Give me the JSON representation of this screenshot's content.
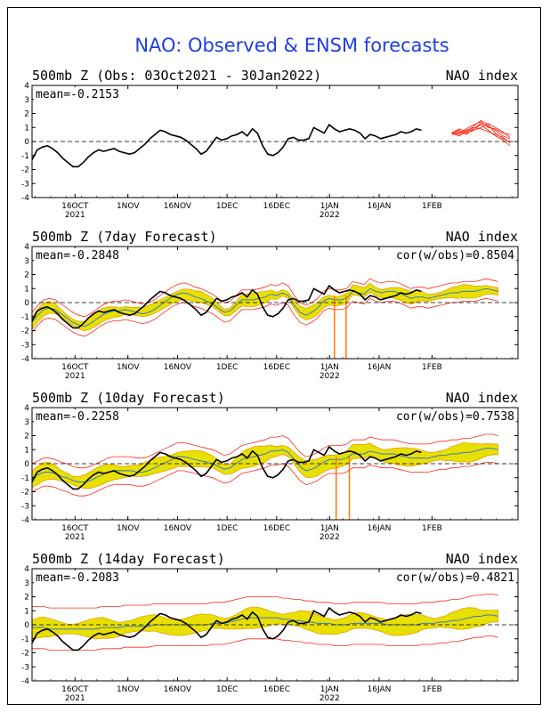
{
  "title": "NAO: Observed & ENSM forecasts",
  "colors": {
    "title": "#1f3fe0",
    "observed": "#000000",
    "forecast_members": "#ff2a1a",
    "ens_mean": "#3a78c8",
    "spread_fill": "#e8e000",
    "spread_edge": "#e8a000",
    "bounds": "#ff2a1a",
    "spike": "#ff7a00"
  },
  "chart_data": [
    {
      "type": "line",
      "title": "500mb Z (Obs: 03Oct2021 - 30Jan2022)",
      "right_label": "NAO index",
      "stat_left": "mean=-0.2153",
      "stat_right": "",
      "ylim": [
        -4,
        4
      ],
      "yticks": [
        -4,
        -3,
        -2,
        -1,
        0,
        1,
        2,
        3,
        4
      ],
      "x_tick_labels": [
        [
          "16OCT",
          "2021"
        ],
        [
          "1NOV",
          ""
        ],
        [
          "16NOV",
          ""
        ],
        [
          "1DEC",
          ""
        ],
        [
          "16DEC",
          ""
        ],
        [
          "1JAN",
          "2022"
        ],
        [
          "16JAN",
          ""
        ],
        [
          "1FEB",
          ""
        ]
      ],
      "x_tick_days": [
        13,
        29,
        44,
        59,
        74,
        90,
        105,
        121
      ],
      "xlim_days": [
        0,
        147
      ],
      "observed": [
        -1.3,
        -0.6,
        -0.4,
        -0.3,
        -0.5,
        -0.8,
        -1.2,
        -1.5,
        -1.8,
        -1.8,
        -1.5,
        -1.1,
        -0.8,
        -0.6,
        -0.7,
        -0.6,
        -0.5,
        -0.7,
        -0.8,
        -0.9,
        -0.8,
        -0.5,
        -0.2,
        0.2,
        0.5,
        0.8,
        0.7,
        0.5,
        0.4,
        0.3,
        0.1,
        -0.2,
        -0.5,
        -0.9,
        -0.7,
        -0.2,
        0.3,
        0.1,
        0.2,
        0.4,
        0.5,
        0.7,
        0.4,
        0.9,
        0.6,
        -0.3,
        -0.9,
        -1.0,
        -0.8,
        -0.4,
        0.2,
        0.3,
        0.1,
        0.1,
        0.2,
        1.0,
        0.8,
        0.6,
        1.2,
        0.9,
        0.7,
        0.8,
        0.9,
        0.8,
        0.6,
        0.2,
        0.5,
        0.4,
        0.2,
        0.3,
        0.4,
        0.5,
        0.7,
        0.6,
        0.7,
        0.9,
        0.8
      ],
      "obs_step_days": 1.55,
      "members_start_day": 127,
      "members": [
        [
          0.6,
          0.8,
          0.5,
          0.9,
          1.3,
          1.1,
          0.8,
          0.4,
          0.2
        ],
        [
          0.5,
          0.6,
          0.9,
          1.2,
          1.4,
          1.0,
          0.9,
          0.6,
          0.5
        ],
        [
          0.7,
          0.5,
          0.8,
          1.0,
          0.9,
          0.7,
          0.5,
          0.3,
          -0.1
        ],
        [
          0.6,
          0.9,
          0.7,
          1.1,
          1.5,
          1.2,
          0.6,
          0.2,
          0.0
        ],
        [
          0.5,
          0.7,
          0.6,
          0.8,
          1.0,
          1.3,
          1.0,
          0.7,
          0.3
        ],
        [
          0.6,
          0.4,
          0.7,
          0.9,
          1.2,
          0.8,
          0.4,
          0.1,
          -0.3
        ]
      ],
      "members_step_days": 2.2
    },
    {
      "type": "area",
      "title": "500mb Z (7day Forecast)",
      "right_label": "NAO index",
      "stat_left": "mean=-0.2848",
      "stat_right": "cor(w/obs)=0.8504",
      "ylim": [
        -4,
        4
      ],
      "yticks": [
        -4,
        -3,
        -2,
        -1,
        0,
        1,
        2,
        3,
        4
      ],
      "x_tick_labels": [
        [
          "16OCT",
          "2021"
        ],
        [
          "1NOV",
          ""
        ],
        [
          "16NOV",
          ""
        ],
        [
          "1DEC",
          ""
        ],
        [
          "16DEC",
          ""
        ],
        [
          "1JAN",
          "2022"
        ],
        [
          "16JAN",
          ""
        ],
        [
          "1FEB",
          ""
        ]
      ],
      "x_tick_days": [
        13,
        29,
        44,
        59,
        74,
        90,
        105,
        121
      ],
      "xlim_days": [
        0,
        147
      ],
      "ens_mean": [
        -1.4,
        -0.9,
        -0.5,
        -0.4,
        -0.5,
        -0.8,
        -1.1,
        -1.4,
        -1.6,
        -1.7,
        -1.5,
        -1.2,
        -0.9,
        -0.7,
        -0.6,
        -0.6,
        -0.5,
        -0.6,
        -0.7,
        -0.8,
        -0.7,
        -0.5,
        -0.2,
        0.1,
        0.4,
        0.6,
        0.7,
        0.6,
        0.4,
        0.3,
        0.1,
        -0.1,
        -0.4,
        -0.7,
        -0.6,
        -0.2,
        0.2,
        0.2,
        0.2,
        0.3,
        0.4,
        0.6,
        0.5,
        0.7,
        0.5,
        -0.2,
        -0.7,
        -0.9,
        -0.7,
        -0.4,
        0.1,
        0.3,
        0.2,
        0.2,
        0.3,
        0.8,
        0.7,
        0.6,
        1.0,
        0.8,
        0.7,
        0.8,
        0.8,
        0.7,
        0.5,
        0.3,
        0.4,
        0.4,
        0.3,
        0.4,
        0.5,
        0.6,
        0.7,
        0.7,
        0.8,
        0.8,
        0.8,
        0.9,
        1.0,
        0.9,
        0.8
      ],
      "spread": 0.35,
      "bound": 0.7,
      "spikes_days": [
        91.5,
        95.0
      ],
      "spikes_low": -4,
      "observed_step_days": 1.55,
      "observed_ref": 0
    },
    {
      "type": "area",
      "title": "500mb Z (10day Forecast)",
      "right_label": "NAO index",
      "stat_left": "mean=-0.2258",
      "stat_right": "cor(w/obs)=0.7538",
      "ylim": [
        -4,
        4
      ],
      "yticks": [
        -4,
        -3,
        -2,
        -1,
        0,
        1,
        2,
        3,
        4
      ],
      "x_tick_labels": [
        [
          "16OCT",
          "2021"
        ],
        [
          "1NOV",
          ""
        ],
        [
          "16NOV",
          ""
        ],
        [
          "1DEC",
          ""
        ],
        [
          "16DEC",
          ""
        ],
        [
          "1JAN",
          "2022"
        ],
        [
          "16JAN",
          ""
        ],
        [
          "1FEB",
          ""
        ]
      ],
      "x_tick_days": [
        13,
        29,
        44,
        59,
        74,
        90,
        105,
        121
      ],
      "xlim_days": [
        0,
        147
      ],
      "ens_mean": [
        -1.0,
        -0.8,
        -0.6,
        -0.6,
        -0.7,
        -0.9,
        -1.0,
        -1.2,
        -1.3,
        -1.3,
        -1.2,
        -1.0,
        -0.8,
        -0.6,
        -0.5,
        -0.5,
        -0.5,
        -0.5,
        -0.6,
        -0.6,
        -0.5,
        -0.3,
        -0.1,
        0.1,
        0.3,
        0.5,
        0.5,
        0.4,
        0.3,
        0.2,
        0.1,
        0.0,
        -0.2,
        -0.4,
        -0.3,
        0.0,
        0.3,
        0.4,
        0.5,
        0.6,
        0.7,
        0.9,
        0.9,
        1.0,
        0.8,
        0.3,
        -0.2,
        -0.5,
        -0.4,
        -0.2,
        0.1,
        0.3,
        0.3,
        0.3,
        0.4,
        0.7,
        0.7,
        0.7,
        0.9,
        0.8,
        0.7,
        0.7,
        0.7,
        0.6,
        0.5,
        0.4,
        0.4,
        0.4,
        0.4,
        0.5,
        0.6,
        0.6,
        0.7,
        0.7,
        0.8,
        0.8,
        0.9,
        1.0,
        1.1,
        1.1,
        1.0
      ],
      "spread": 0.5,
      "bound": 1.0,
      "spikes_days": [
        92.0,
        96.0
      ],
      "spikes_low": -4,
      "observed_step_days": 1.55,
      "observed_ref": 0
    },
    {
      "type": "area",
      "title": "500mb Z (14day Forecast)",
      "right_label": "NAO index",
      "stat_left": "mean=-0.2083",
      "stat_right": "cor(w/obs)=0.4821",
      "ylim": [
        -4,
        4
      ],
      "yticks": [
        -4,
        -3,
        -2,
        -1,
        0,
        1,
        2,
        3,
        4
      ],
      "x_tick_labels": [
        [
          "16OCT",
          "2021"
        ],
        [
          "1NOV",
          ""
        ],
        [
          "16NOV",
          ""
        ],
        [
          "1DEC",
          ""
        ],
        [
          "16DEC",
          ""
        ],
        [
          "1JAN",
          "2022"
        ],
        [
          "16JAN",
          ""
        ],
        [
          "1FEB",
          ""
        ]
      ],
      "x_tick_days": [
        13,
        29,
        44,
        59,
        74,
        90,
        105,
        121
      ],
      "xlim_days": [
        0,
        147
      ],
      "ens_mean": [
        -0.2,
        -0.2,
        -0.2,
        -0.3,
        -0.3,
        -0.3,
        -0.3,
        -0.3,
        -0.3,
        -0.3,
        -0.3,
        -0.3,
        -0.2,
        -0.2,
        -0.2,
        -0.2,
        -0.1,
        -0.1,
        -0.1,
        -0.1,
        -0.1,
        0.0,
        0.0,
        0.0,
        0.0,
        0.0,
        0.0,
        0.0,
        0.0,
        0.0,
        0.0,
        0.1,
        0.1,
        0.1,
        0.2,
        0.3,
        0.4,
        0.5,
        0.5,
        0.5,
        0.5,
        0.5,
        0.5,
        0.4,
        0.4,
        0.3,
        0.3,
        0.2,
        0.2,
        0.1,
        0.1,
        0.1,
        0.0,
        0.0,
        0.0,
        0.1,
        0.1,
        0.1,
        0.1,
        0.1,
        0.1,
        0.0,
        0.0,
        0.0,
        0.0,
        0.0,
        0.0,
        0.1,
        0.1,
        0.1,
        0.2,
        0.2,
        0.3,
        0.3,
        0.4,
        0.5,
        0.6,
        0.6,
        0.7,
        0.7,
        0.6
      ],
      "spread": 0.55,
      "bound": 1.5,
      "spikes_days": [],
      "spikes_low": -4,
      "observed_step_days": 1.55,
      "observed_ref": 0
    }
  ]
}
